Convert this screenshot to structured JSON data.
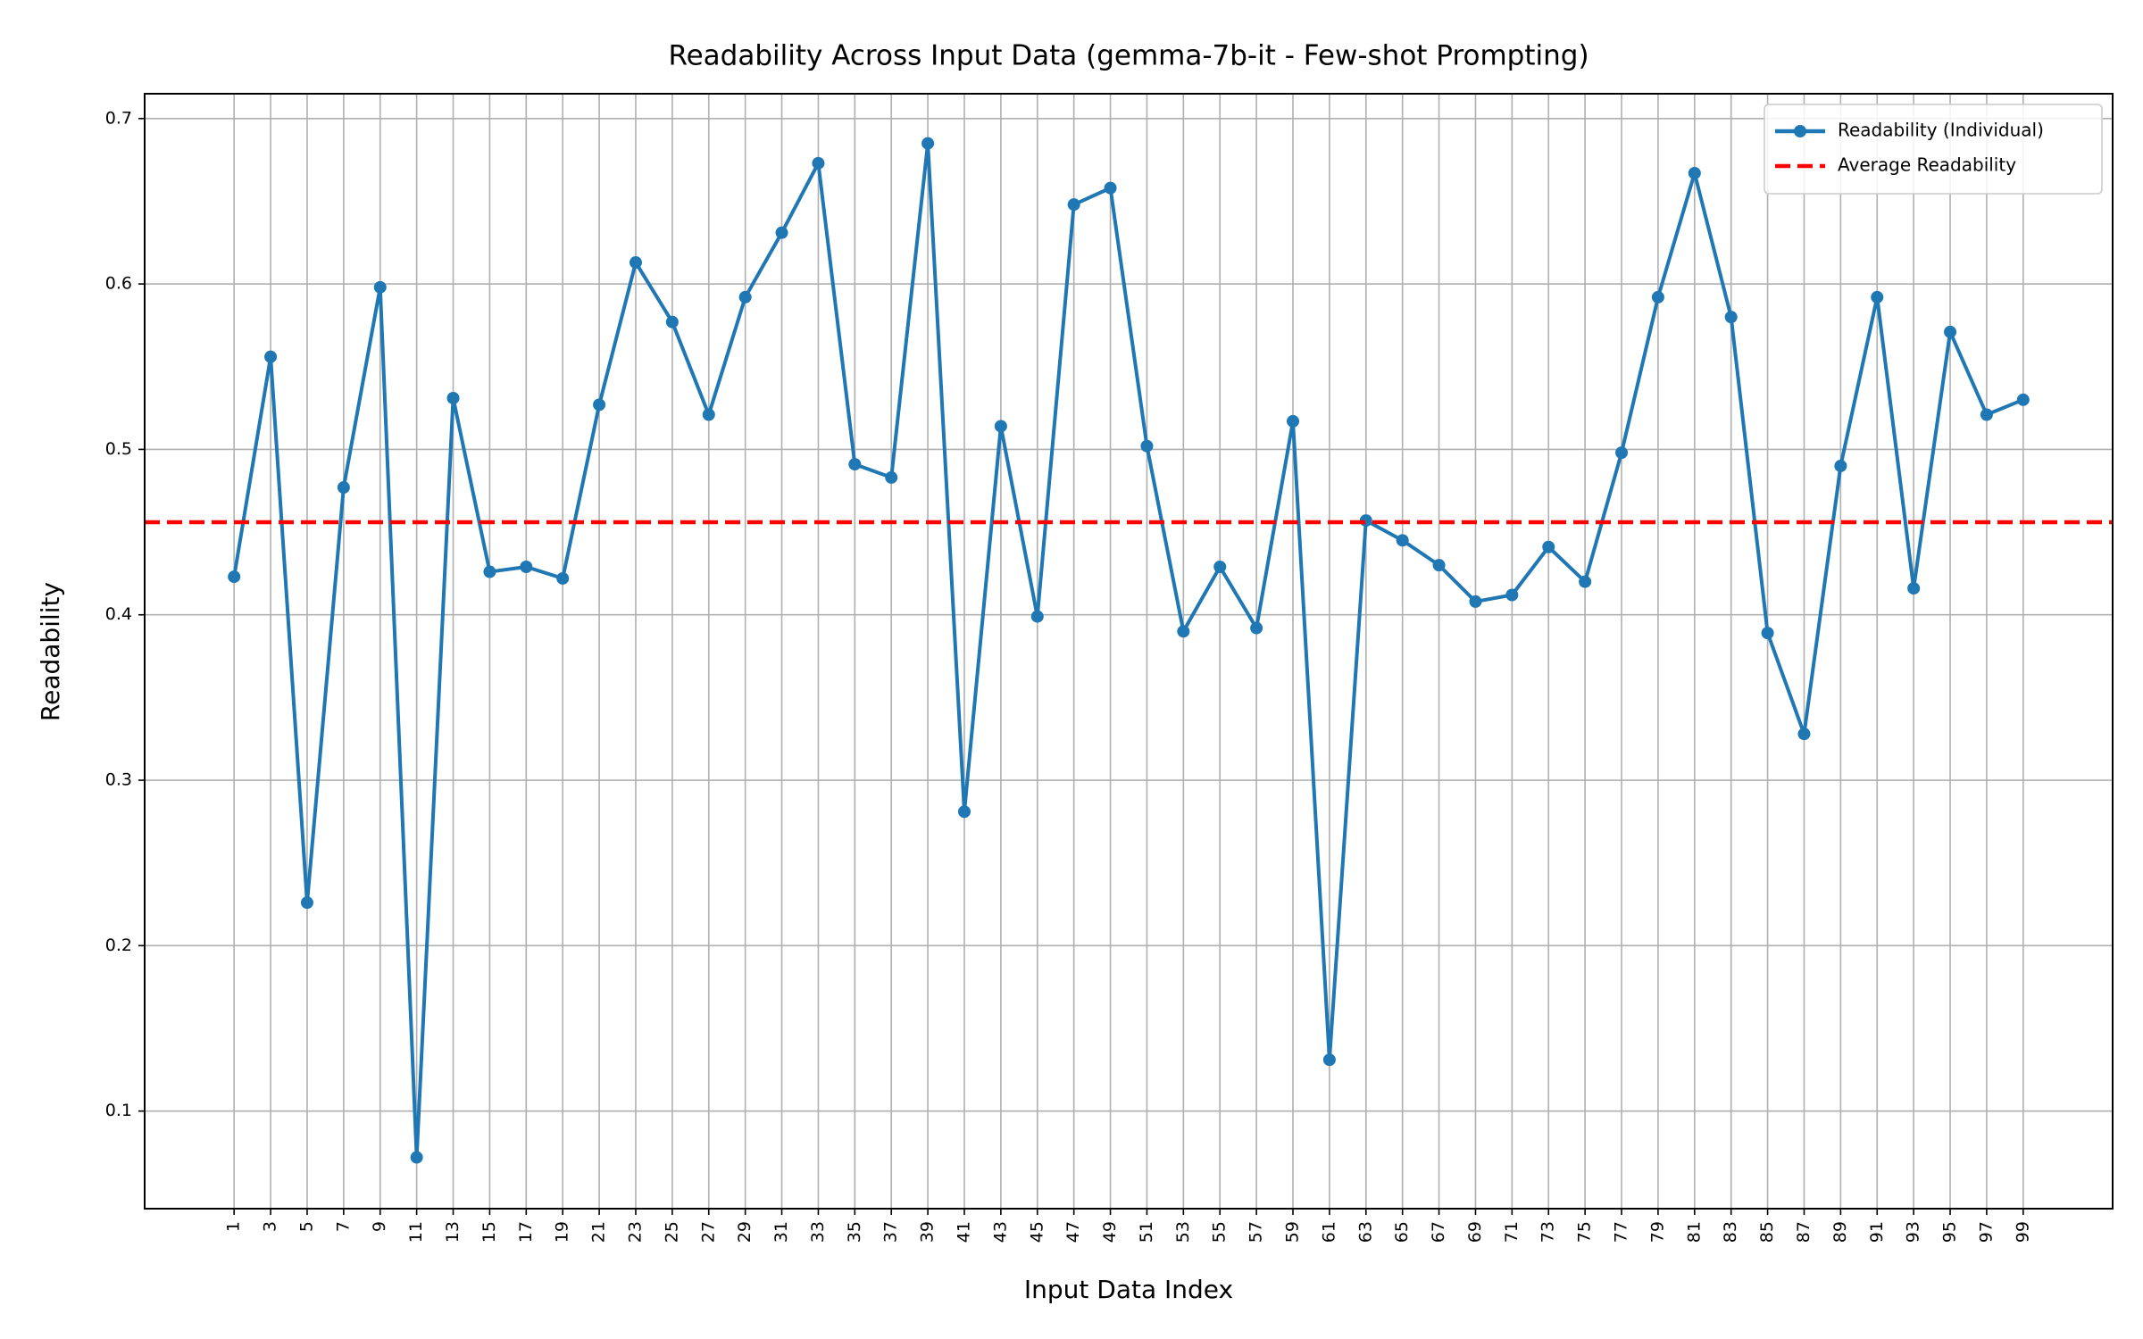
{
  "chart_data": {
    "type": "line",
    "title": "Readability Across Input Data (gemma-7b-it - Few-shot Prompting)",
    "x_label": "Input Data Index",
    "y_label": "Readability",
    "x": [
      1,
      3,
      5,
      7,
      9,
      11,
      13,
      15,
      17,
      19,
      21,
      23,
      25,
      27,
      29,
      31,
      33,
      35,
      37,
      39,
      41,
      43,
      45,
      47,
      49,
      51,
      53,
      55,
      57,
      59,
      61,
      63,
      65,
      67,
      69,
      71,
      73,
      75,
      77,
      79,
      81,
      83,
      85,
      87,
      89,
      91,
      93,
      95,
      97,
      99
    ],
    "series": [
      {
        "name": "Readability (Individual)",
        "color": "#1f77b4",
        "values": [
          0.423,
          0.556,
          0.226,
          0.477,
          0.598,
          0.072,
          0.531,
          0.426,
          0.429,
          0.422,
          0.527,
          0.613,
          0.577,
          0.521,
          0.592,
          0.631,
          0.673,
          0.491,
          0.483,
          0.685,
          0.281,
          0.514,
          0.399,
          0.648,
          0.658,
          0.502,
          0.39,
          0.429,
          0.392,
          0.517,
          0.131,
          0.457,
          0.445,
          0.43,
          0.408,
          0.412,
          0.441,
          0.42,
          0.498,
          0.592,
          0.667,
          0.58,
          0.389,
          0.328,
          0.49,
          0.592,
          0.416,
          0.571,
          0.521,
          0.53
        ]
      }
    ],
    "average_line": {
      "name": "Average Readability",
      "color": "#ff0000",
      "value": 0.456
    },
    "xlim": [
      -3.9,
      103.9
    ],
    "ylim": [
      0.041,
      0.715
    ],
    "xticks": [
      1,
      3,
      5,
      7,
      9,
      11,
      13,
      15,
      17,
      19,
      21,
      23,
      25,
      27,
      29,
      31,
      33,
      35,
      37,
      39,
      41,
      43,
      45,
      47,
      49,
      51,
      53,
      55,
      57,
      59,
      61,
      63,
      65,
      67,
      69,
      71,
      73,
      75,
      77,
      79,
      81,
      83,
      85,
      87,
      89,
      91,
      93,
      95,
      97,
      99
    ],
    "yticks": [
      0.1,
      0.2,
      0.3,
      0.4,
      0.5,
      0.6,
      0.7
    ],
    "grid": true,
    "legend": "upper right"
  }
}
